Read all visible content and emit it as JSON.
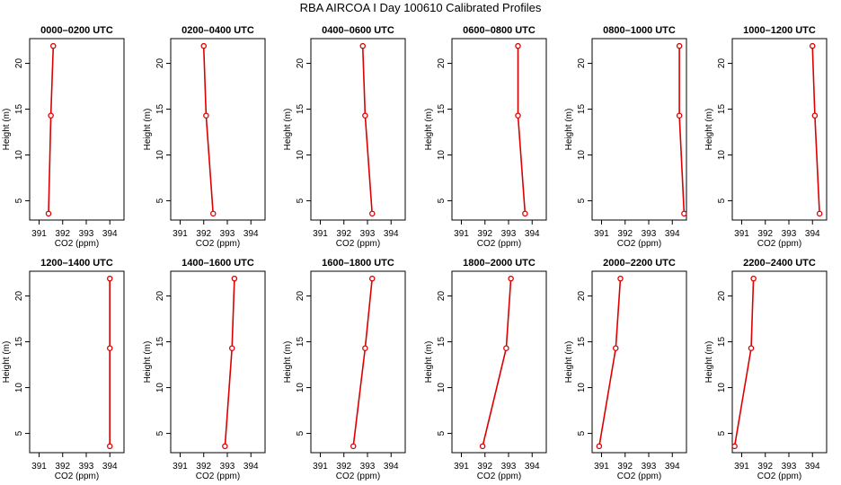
{
  "title": "RBA AIRCOA I  Day 100610  Calibrated Profiles",
  "chart_data": {
    "type": "line",
    "layout": "grid 2 rows x 6 columns",
    "xlabel": "CO2 (ppm)",
    "ylabel": "Height (m)",
    "xlim": [
      390.6,
      394.6
    ],
    "ylim": [
      2.9,
      22.7
    ],
    "xticks": [
      391,
      392,
      393,
      394
    ],
    "yticks": [
      5,
      10,
      15,
      20
    ],
    "line_color": "#dd0000",
    "marker": "open-circle",
    "heights": [
      3.6,
      14.3,
      21.9
    ],
    "panels": [
      {
        "title": "0000–0200 UTC",
        "x": [
          391.4,
          391.5,
          391.6
        ]
      },
      {
        "title": "0200–0400 UTC",
        "x": [
          392.4,
          392.1,
          392.0
        ]
      },
      {
        "title": "0400–0600 UTC",
        "x": [
          393.2,
          392.9,
          392.8
        ]
      },
      {
        "title": "0600–0800 UTC",
        "x": [
          393.7,
          393.4,
          393.4
        ]
      },
      {
        "title": "0800–1000 UTC",
        "x": [
          394.5,
          394.3,
          394.3
        ]
      },
      {
        "title": "1000–1200 UTC",
        "x": [
          394.3,
          394.1,
          394.0
        ]
      },
      {
        "title": "1200–1400 UTC",
        "x": [
          394.0,
          394.0,
          394.0
        ]
      },
      {
        "title": "1400–1600 UTC",
        "x": [
          392.9,
          393.2,
          393.3
        ]
      },
      {
        "title": "1600–1800 UTC",
        "x": [
          392.4,
          392.9,
          393.2
        ]
      },
      {
        "title": "1800–2000 UTC",
        "x": [
          391.9,
          392.9,
          393.1
        ]
      },
      {
        "title": "2000–2200 UTC",
        "x": [
          390.9,
          391.6,
          391.8
        ]
      },
      {
        "title": "2200–2400 UTC",
        "x": [
          390.7,
          391.4,
          391.5
        ]
      }
    ]
  }
}
